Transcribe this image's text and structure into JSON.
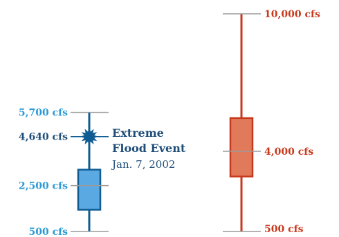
{
  "chart_data": {
    "type": "box",
    "title": "",
    "xlabel": "",
    "ylabel": "",
    "unit": "cfs",
    "series": [
      {
        "min": 500,
        "q1": 1450,
        "median": 2500,
        "q3": 3200,
        "max": 5700,
        "color": "#0f5c93",
        "fill": "#5aa9e2",
        "label_color_edge": "#2b9ad6",
        "label_color_mid": "#1f4e79",
        "labels": {
          "max": "5,700 cfs",
          "median": "2,500 cfs",
          "min": "500 cfs"
        },
        "event": {
          "value": 4640,
          "value_label": "4,640 cfs",
          "title_line1": "Extreme",
          "title_line2": "Flood Event",
          "date": "Jan. 7, 2002",
          "color": "#0f5c93"
        }
      },
      {
        "min": 500,
        "q1": 2900,
        "median": 4000,
        "q3": 5450,
        "max": 10000,
        "color": "#c8391c",
        "fill": "#e07a5a",
        "label_color": "#c8391c",
        "labels": {
          "max": "10,000 cfs",
          "median": "4,000 cfs",
          "min": "500 cfs"
        }
      }
    ]
  }
}
